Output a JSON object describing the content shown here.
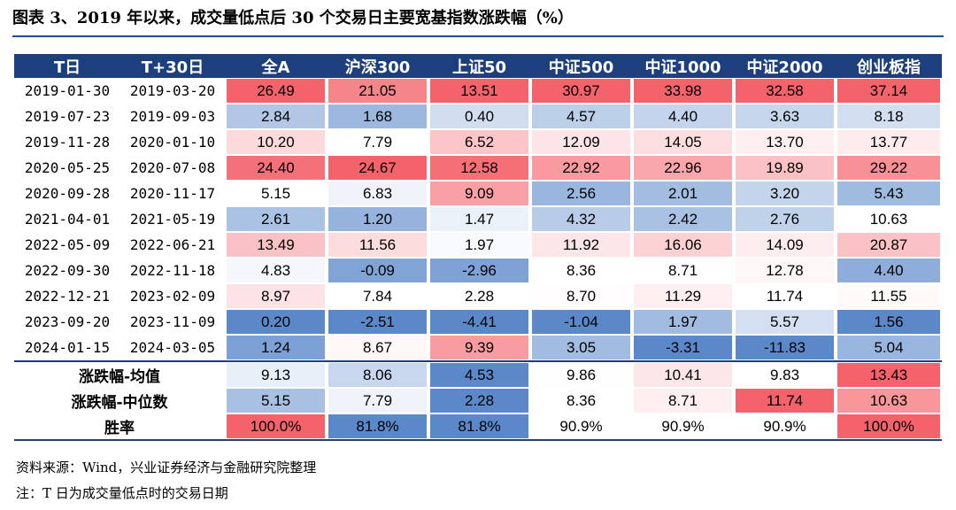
{
  "title": "图表 3、2019 年以来，成交量低点后 30 个交易日主要宽基指数涨跌幅（%）",
  "chart_data": {
    "type": "table",
    "columns": [
      "T日",
      "T+30日",
      "全A",
      "沪深300",
      "上证50",
      "中证500",
      "中证1000",
      "中证2000",
      "创业板指"
    ],
    "rows": [
      {
        "t": "2019-01-30",
        "t30": "2019-03-20",
        "values": [
          "26.49",
          "21.05",
          "13.51",
          "30.97",
          "33.98",
          "32.58",
          "37.14"
        ]
      },
      {
        "t": "2019-07-23",
        "t30": "2019-09-03",
        "values": [
          "2.84",
          "1.68",
          "0.40",
          "4.57",
          "4.40",
          "3.63",
          "8.18"
        ]
      },
      {
        "t": "2019-11-28",
        "t30": "2020-01-10",
        "values": [
          "10.20",
          "7.79",
          "6.52",
          "12.09",
          "14.05",
          "13.70",
          "13.77"
        ]
      },
      {
        "t": "2020-05-25",
        "t30": "2020-07-08",
        "values": [
          "24.40",
          "24.67",
          "12.58",
          "22.92",
          "22.96",
          "19.89",
          "29.22"
        ]
      },
      {
        "t": "2020-09-28",
        "t30": "2020-11-17",
        "values": [
          "5.15",
          "6.83",
          "9.09",
          "2.56",
          "2.01",
          "3.20",
          "5.43"
        ]
      },
      {
        "t": "2021-04-01",
        "t30": "2021-05-19",
        "values": [
          "2.61",
          "1.20",
          "1.47",
          "4.32",
          "2.42",
          "2.76",
          "10.63"
        ]
      },
      {
        "t": "2022-05-09",
        "t30": "2022-06-21",
        "values": [
          "13.49",
          "11.56",
          "1.97",
          "11.92",
          "16.06",
          "14.09",
          "20.87"
        ]
      },
      {
        "t": "2022-09-30",
        "t30": "2022-11-18",
        "values": [
          "4.83",
          "-0.09",
          "-2.96",
          "8.36",
          "8.71",
          "12.78",
          "4.40"
        ]
      },
      {
        "t": "2022-12-21",
        "t30": "2023-02-09",
        "values": [
          "8.97",
          "7.84",
          "2.28",
          "8.70",
          "11.29",
          "11.74",
          "11.55"
        ]
      },
      {
        "t": "2023-09-20",
        "t30": "2023-11-09",
        "values": [
          "0.20",
          "-2.51",
          "-4.41",
          "-1.04",
          "1.97",
          "5.57",
          "1.56"
        ]
      },
      {
        "t": "2024-01-15",
        "t30": "2024-03-05",
        "values": [
          "1.24",
          "8.67",
          "9.39",
          "3.05",
          "-3.31",
          "-11.83",
          "5.04"
        ]
      }
    ],
    "summary": [
      {
        "label": "涨跌幅-均值",
        "values": [
          "9.13",
          "8.06",
          "4.53",
          "9.86",
          "10.41",
          "9.83",
          "13.43"
        ]
      },
      {
        "label": "涨跌幅-中位数",
        "values": [
          "5.15",
          "7.79",
          "2.28",
          "8.36",
          "8.71",
          "11.74",
          "10.63"
        ]
      },
      {
        "label": "胜率",
        "values": [
          "100.0%",
          "81.8%",
          "81.8%",
          "90.9%",
          "90.9%",
          "90.9%",
          "100.0%"
        ]
      }
    ]
  },
  "colors": {
    "header_bg": "#1e3f7e",
    "rule": "#1f4e9c",
    "high": "#f4626b",
    "low": "#5a88c9",
    "neutral": "#ffffff"
  },
  "footnotes": {
    "source": "资料来源：Wind，兴业证券经济与金融研究院整理",
    "note": "注：T 日为成交量低点时的交易日期"
  }
}
